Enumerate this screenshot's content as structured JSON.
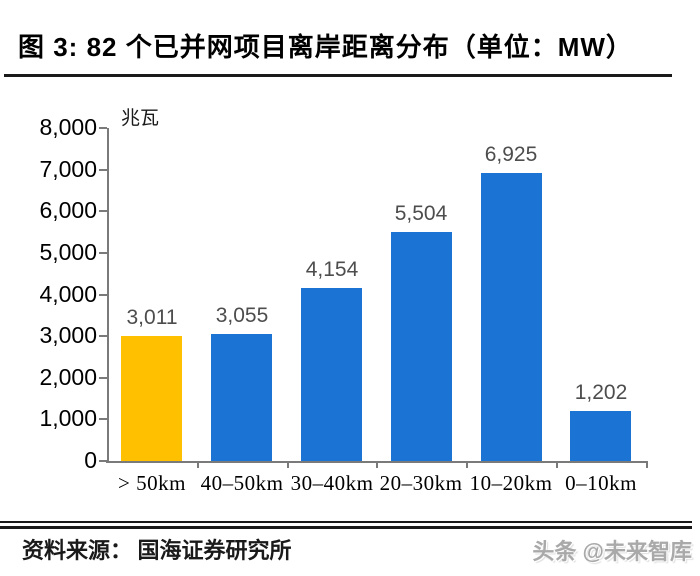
{
  "figure": {
    "title": "图 3:  82 个已并网项目离岸距离分布（单位：MW）",
    "source_label": "资料来源：",
    "source_value": "国海证券研究所",
    "watermark": "头条 @未来智库"
  },
  "chart_data": {
    "type": "bar",
    "title": "82 个已并网项目离岸距离分布",
    "unit_label": "兆瓦",
    "unit": "MW",
    "categories": [
      "> 50km",
      "40–50km",
      "30–40km",
      "20–30km",
      "10–20km",
      "0–10km"
    ],
    "values": [
      3011,
      3055,
      4154,
      5504,
      6925,
      1202
    ],
    "value_labels": [
      "3,011",
      "3,055",
      "4,154",
      "5,504",
      "6,925",
      "1,202"
    ],
    "bar_colors": [
      "#FFC000",
      "#1B74D3",
      "#1B74D3",
      "#1B74D3",
      "#1B74D3",
      "#1B74D3"
    ],
    "ylim": [
      0,
      8000
    ],
    "ytick_step": 1000,
    "ytick_labels": [
      "0",
      "1,000",
      "2,000",
      "3,000",
      "4,000",
      "5,000",
      "6,000",
      "7,000",
      "8,000"
    ],
    "grid": false,
    "legend": "none",
    "xlabel": "",
    "ylabel": "兆瓦"
  },
  "colors": {
    "bar_blue": "#1B74D3",
    "bar_orange": "#FFC000",
    "axis_gray": "#7a7a7a",
    "value_label_gray": "#4d4d4d",
    "watermark_gray": "#a9a9a9",
    "rule_black": "#1a1a1a"
  }
}
